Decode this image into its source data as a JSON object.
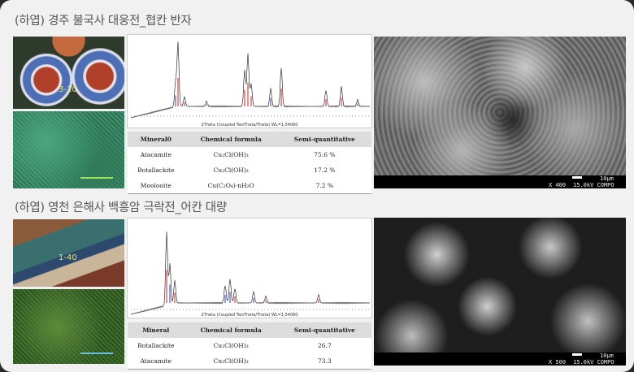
{
  "sections": [
    {
      "title": "(하엽) 경주 불국사 대웅전_협칸 반자",
      "photo_label": "3-10",
      "xrd_axis_label": "2Theta (Coupled TwoTheta/Theta) WL=1.54060",
      "table": {
        "headers": [
          "Mineral0",
          "Chemical formula",
          "Semi-quantitative"
        ],
        "rows": [
          [
            "Atacamite",
            "Cu₂Cl(OH)₃",
            "75.6 %"
          ],
          [
            "Botallackite",
            "Cu₂Cl(OH)₃",
            "17.2 %"
          ],
          [
            "Moolooite",
            "Cu(C₂O₄)·nH₂O",
            "7.2 %"
          ]
        ]
      },
      "sem": {
        "scale": "10μm",
        "magnification": "X 400",
        "conditions": "15.0kV COMPO"
      }
    },
    {
      "title": "(하엽) 영천 은해사 백흥암 극락전_어칸 대량",
      "photo_label": "1-40",
      "xrd_axis_label": "2Theta (Coupled TwoTheta/Theta) WL=1.54060",
      "table": {
        "headers": [
          "Mineral",
          "Chemical formula",
          "Semi-quantitative"
        ],
        "rows": [
          [
            "Botallackite",
            "Cu₂Cl(OH)₃",
            "26.7"
          ],
          [
            "Atacamite",
            "Cu₂Cl(OH)₃",
            "73.3"
          ]
        ]
      },
      "sem": {
        "scale": "10μm",
        "magnification": "X 500",
        "conditions": "15.0kV COMPO"
      }
    }
  ]
}
